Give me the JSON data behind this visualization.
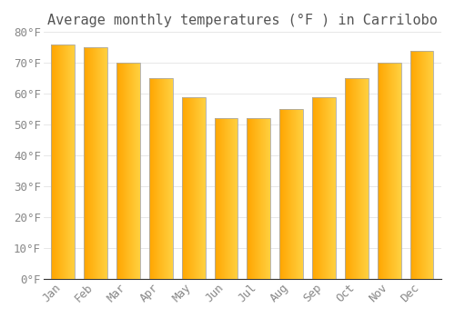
{
  "title": "Average monthly temperatures (°F ) in Carrilobo",
  "months": [
    "Jan",
    "Feb",
    "Mar",
    "Apr",
    "May",
    "Jun",
    "Jul",
    "Aug",
    "Sep",
    "Oct",
    "Nov",
    "Dec"
  ],
  "values": [
    76,
    75,
    70,
    65,
    59,
    52,
    52,
    55,
    59,
    65,
    70,
    74
  ],
  "bar_color_left": "#FFA500",
  "bar_color_right": "#FFD000",
  "bar_color_edge": "#AAAAAA",
  "ylim": [
    0,
    80
  ],
  "yticks": [
    0,
    10,
    20,
    30,
    40,
    50,
    60,
    70,
    80
  ],
  "ytick_labels": [
    "0°F",
    "10°F",
    "20°F",
    "30°F",
    "40°F",
    "50°F",
    "60°F",
    "70°F",
    "80°F"
  ],
  "background_color": "#FFFFFF",
  "grid_color": "#DDDDDD",
  "title_fontsize": 11,
  "tick_fontsize": 9,
  "font_color": "#888888",
  "spine_color": "#333333"
}
